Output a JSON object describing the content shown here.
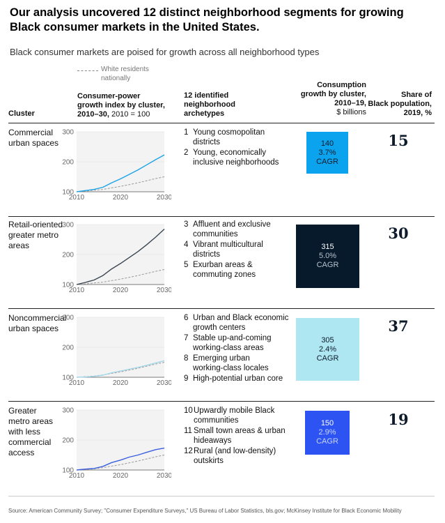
{
  "title": "Our analysis uncovered 12 distinct neighborhood segments for growing Black consumer markets in the United States.",
  "subtitle": "Black consumer markets are poised for growth across all neighborhood types",
  "legend": {
    "white_residents_line1": "White residents",
    "white_residents_line2": "nationally"
  },
  "headers": {
    "cluster": "Cluster",
    "index_line1": "Consumer-power",
    "index_line2": "growth index by cluster,",
    "index_line3_bold": "2010–30,",
    "index_line3_rest": " 2010 = 100",
    "archetypes_line1": "12 identified",
    "archetypes_line2": "neighborhood",
    "archetypes_line3": "archetypes",
    "consumption_line1": "Consumption",
    "consumption_line2": "growth by cluster,",
    "consumption_line3": "2010–19,",
    "consumption_line4": "$ billions",
    "share_line1": "Share of",
    "share_line2": "Black population,",
    "share_line3": "2019, %"
  },
  "colors": {
    "cluster1": "#1aa3e8",
    "cluster2": "#3a4550",
    "cluster3": "#a3d8ea",
    "cluster4": "#3b5fe0",
    "box1": "#0ba3ee",
    "box2": "#061a2b",
    "box3": "#aee6f2",
    "box4": "#2d54f2",
    "white_line": "#9a9a9a"
  },
  "clusters": [
    {
      "name_lines": [
        "Commercial",
        "urban spaces"
      ],
      "archetypes": [
        {
          "num": "1",
          "lines": [
            "Young cosmopolitan",
            "districts"
          ]
        },
        {
          "num": "2",
          "lines": [
            "Young, economically",
            "inclusive neighborhoods"
          ]
        }
      ],
      "consumption": "140",
      "cagr": "3.7%",
      "cagr_label": "CAGR",
      "share": "15"
    },
    {
      "name_lines": [
        "Retail-oriented",
        "greater metro",
        "areas"
      ],
      "archetypes": [
        {
          "num": "3",
          "lines": [
            "Affluent and exclusive",
            "communities"
          ]
        },
        {
          "num": "4",
          "lines": [
            "Vibrant multicultural",
            "districts"
          ]
        },
        {
          "num": "5",
          "lines": [
            "Exurban areas &",
            "commuting zones"
          ]
        }
      ],
      "consumption": "315",
      "cagr": "5.0%",
      "cagr_label": "CAGR",
      "share": "30"
    },
    {
      "name_lines": [
        "Noncommercial",
        "urban spaces"
      ],
      "archetypes": [
        {
          "num": "6",
          "lines": [
            "Urban and Black economic",
            "growth centers"
          ]
        },
        {
          "num": "7",
          "lines": [
            "Stable up-and-coming",
            "working-class areas"
          ]
        },
        {
          "num": "8",
          "lines": [
            "Emerging urban",
            "working-class locales"
          ]
        },
        {
          "num": "9",
          "lines": [
            "High-potential urban core"
          ]
        }
      ],
      "consumption": "305",
      "cagr": "2.4%",
      "cagr_label": "CAGR",
      "share": "37"
    },
    {
      "name_lines": [
        "Greater",
        "metro areas",
        "with less",
        "commercial",
        "access"
      ],
      "archetypes": [
        {
          "num": "10",
          "lines": [
            "Upwardly mobile Black",
            "communities"
          ]
        },
        {
          "num": "11",
          "lines": [
            "Small town areas & urban",
            "hideaways"
          ]
        },
        {
          "num": "12",
          "lines": [
            "Rural (and low-density)",
            "outskirts"
          ]
        }
      ],
      "consumption": "150",
      "cagr": "2.9%",
      "cagr_label": "CAGR",
      "share": "19"
    }
  ],
  "chart_data": [
    {
      "type": "line",
      "title": "Commercial urban spaces",
      "x": [
        2010,
        2012,
        2014,
        2016,
        2018,
        2020,
        2022,
        2024,
        2026,
        2028,
        2030
      ],
      "series": [
        {
          "name": "Commercial urban spaces",
          "values": [
            100,
            104,
            108,
            115,
            130,
            143,
            158,
            173,
            190,
            207,
            223
          ]
        },
        {
          "name": "White residents nationally",
          "values": [
            100,
            102,
            105,
            108,
            113,
            118,
            124,
            130,
            137,
            144,
            150
          ]
        }
      ],
      "xticks": [
        "2010",
        "2020",
        "2030"
      ],
      "yticks": [
        "100",
        "200",
        "300"
      ],
      "ylim": [
        100,
        300
      ]
    },
    {
      "type": "line",
      "title": "Retail-oriented greater metro areas",
      "x": [
        2010,
        2012,
        2014,
        2016,
        2018,
        2020,
        2022,
        2024,
        2026,
        2028,
        2030
      ],
      "series": [
        {
          "name": "Retail-oriented greater metro areas",
          "values": [
            100,
            107,
            115,
            130,
            152,
            170,
            190,
            210,
            233,
            258,
            285
          ]
        },
        {
          "name": "White residents nationally",
          "values": [
            100,
            102,
            105,
            108,
            113,
            118,
            124,
            130,
            137,
            144,
            150
          ]
        }
      ],
      "xticks": [
        "2010",
        "2020",
        "2030"
      ],
      "yticks": [
        "100",
        "200",
        "300"
      ],
      "ylim": [
        100,
        300
      ]
    },
    {
      "type": "line",
      "title": "Noncommercial urban spaces",
      "x": [
        2010,
        2012,
        2014,
        2016,
        2018,
        2020,
        2022,
        2024,
        2026,
        2028,
        2030
      ],
      "series": [
        {
          "name": "Noncommercial urban spaces",
          "values": [
            100,
            101,
            103,
            107,
            115,
            121,
            127,
            133,
            140,
            148,
            155
          ]
        },
        {
          "name": "White residents nationally",
          "values": [
            100,
            102,
            104,
            108,
            113,
            118,
            124,
            130,
            137,
            144,
            150
          ]
        }
      ],
      "xticks": [
        "2010",
        "2020",
        "2030"
      ],
      "yticks": [
        "100",
        "200",
        "300"
      ],
      "ylim": [
        100,
        300
      ]
    },
    {
      "type": "line",
      "title": "Greater metro areas with less commercial access",
      "x": [
        2010,
        2012,
        2014,
        2016,
        2018,
        2020,
        2022,
        2024,
        2026,
        2028,
        2030
      ],
      "series": [
        {
          "name": "Greater metro areas with less commercial access",
          "values": [
            100,
            103,
            105,
            112,
            125,
            133,
            143,
            150,
            159,
            168,
            173
          ]
        },
        {
          "name": "White residents nationally",
          "values": [
            100,
            102,
            104,
            108,
            113,
            118,
            124,
            130,
            137,
            144,
            150
          ]
        }
      ],
      "xticks": [
        "2010",
        "2020",
        "2030"
      ],
      "yticks": [
        "100",
        "200",
        "300"
      ],
      "ylim": [
        100,
        300
      ]
    }
  ],
  "source": "Source: American Community Survey; \"Consumer Expenditure Surveys,\" US Bureau of Labor Statistics, bls.gov; McKinsey Institute for Black Economic Mobility"
}
